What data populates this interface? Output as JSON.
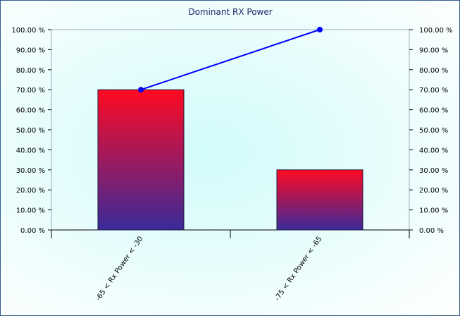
{
  "chart_data": {
    "type": "bar",
    "title": "Dominant RX Power",
    "categories": [
      "-65 < Rx Power < -30",
      "-75 < Rx Power < -65"
    ],
    "series": [
      {
        "type": "bar",
        "values": [
          70,
          30
        ]
      },
      {
        "type": "line",
        "values": [
          70,
          100
        ]
      }
    ],
    "ylim": [
      0,
      100
    ],
    "y_ticks": [
      "0.00 %",
      "10.00 %",
      "20.00 %",
      "30.00 %",
      "40.00 %",
      "50.00 %",
      "60.00 %",
      "70.00 %",
      "80.00 %",
      "90.00 %",
      "100.00 %"
    ],
    "y2_ticks": [
      "0.00 %",
      "10.00 %",
      "20.00 %",
      "30.00 %",
      "40.00 %",
      "50.00 %",
      "60.00 %",
      "70.00 %",
      "80.00 %",
      "90.00 %",
      "100.00 %"
    ],
    "grid": false,
    "legend": "none",
    "colors": {
      "bar_top": "#ff0a22",
      "bar_bottom": "#3a2a9a",
      "line": "#0000ff",
      "axis": "#9aaeb6",
      "title": "#1a2a66",
      "border": "#2f5d8a"
    }
  }
}
